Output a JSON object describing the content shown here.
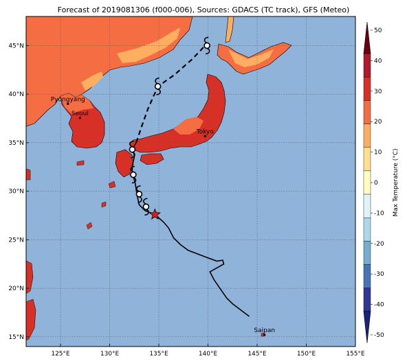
{
  "title": "Forecast of 2019081306 (f000-006), Sources: GDACS (TC track), GFS (Meteo)",
  "map": {
    "lon_range": [
      121.5,
      155
    ],
    "lat_range": [
      14,
      48
    ],
    "lon_ticks": [
      125,
      130,
      135,
      140,
      145,
      150,
      155
    ],
    "lon_labels": [
      "125°E",
      "130°E",
      "135°E",
      "140°E",
      "145°E",
      "150°E",
      "155°E"
    ],
    "lat_ticks": [
      15,
      20,
      25,
      30,
      35,
      40,
      45
    ],
    "lat_labels": [
      "15°N",
      "20°N",
      "25°N",
      "30°N",
      "35°N",
      "40°N",
      "45°N"
    ],
    "ocean_color": "#8fb3d9",
    "grid": true
  },
  "cities": [
    {
      "name": "Pyongyang",
      "lon": 125.75,
      "lat": 39.0
    },
    {
      "name": "Seoul",
      "lon": 126.98,
      "lat": 37.55
    },
    {
      "name": "Tokyo",
      "lon": 139.7,
      "lat": 35.68
    },
    {
      "name": "Saipan",
      "lon": 145.75,
      "lat": 15.2
    }
  ],
  "track": {
    "observed": [
      [
        144.2,
        17.1
      ],
      [
        142.5,
        18.4
      ],
      [
        141.9,
        19.0
      ],
      [
        140.6,
        20.9
      ],
      [
        140.2,
        21.7
      ],
      [
        141.6,
        22.5
      ],
      [
        141.5,
        22.9
      ],
      [
        140.9,
        22.8
      ],
      [
        139.8,
        23.2
      ],
      [
        138.0,
        23.9
      ],
      [
        137.2,
        24.5
      ],
      [
        136.5,
        25.2
      ],
      [
        136.0,
        26.2
      ],
      [
        135.5,
        26.8
      ],
      [
        134.6,
        27.6
      ],
      [
        133.6,
        28.0
      ],
      [
        133.0,
        28.6
      ],
      [
        132.8,
        29.5
      ],
      [
        132.6,
        30.8
      ],
      [
        132.3,
        31.9
      ],
      [
        132.3,
        32.6
      ],
      [
        132.5,
        33.5
      ],
      [
        132.4,
        34.5
      ],
      [
        132.7,
        35.0
      ]
    ],
    "forecast": [
      [
        132.7,
        35.0
      ],
      [
        133.3,
        36.8
      ],
      [
        133.9,
        38.5
      ],
      [
        134.6,
        40.1
      ],
      [
        135.2,
        41.0
      ],
      [
        136.6,
        42.0
      ],
      [
        138.4,
        43.6
      ],
      [
        139.9,
        45.2
      ]
    ],
    "current_position": {
      "lon": 134.6,
      "lat": 27.6
    },
    "symbols": [
      [
        133.7,
        28.4
      ],
      [
        133.0,
        29.7
      ],
      [
        132.4,
        31.7
      ],
      [
        132.3,
        34.3
      ],
      [
        134.9,
        40.8
      ],
      [
        139.9,
        45.0
      ]
    ]
  },
  "colorbar": {
    "label": "Max Temperature (°C)",
    "ticks": [
      50,
      40,
      30,
      20,
      10,
      0,
      -10,
      -20,
      -30,
      -40,
      -50
    ],
    "bins": [
      "#6b0010",
      "#b2182b",
      "#d73027",
      "#f46d43",
      "#fdae61",
      "#fee090",
      "#ffffbf",
      "#e0f3f8",
      "#abd9e9",
      "#74add1",
      "#4575b4",
      "#313695",
      "#1a237e"
    ]
  }
}
